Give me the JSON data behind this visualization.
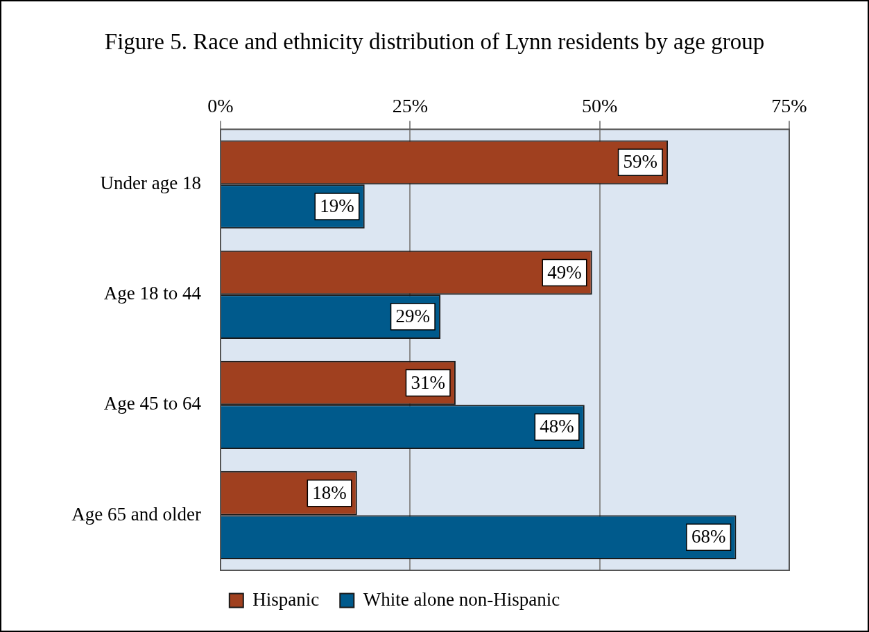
{
  "chart_data": {
    "type": "bar",
    "orientation": "horizontal",
    "title": "Figure 5. Race and ethnicity distribution of Lynn residents by age group",
    "categories": [
      "Under age 18",
      "Age 18 to 44",
      "Age 45 to 64",
      "Age 65 and older"
    ],
    "series": [
      {
        "name": "Hispanic",
        "color": "#a0401f",
        "values": [
          59,
          49,
          31,
          18
        ],
        "value_labels": [
          "59%",
          "49%",
          "31%",
          "18%"
        ]
      },
      {
        "name": "White alone non-Hispanic",
        "color": "#005a8c",
        "values": [
          19,
          29,
          48,
          68
        ],
        "value_labels": [
          "19%",
          "29%",
          "48%",
          "68%"
        ]
      }
    ],
    "xlim": [
      0,
      75
    ],
    "xticks": [
      {
        "value": 0,
        "label": "0%"
      },
      {
        "value": 25,
        "label": "25%"
      },
      {
        "value": 50,
        "label": "50%"
      },
      {
        "value": 75,
        "label": "75%"
      }
    ],
    "grid": "x",
    "legend": "bottom"
  }
}
